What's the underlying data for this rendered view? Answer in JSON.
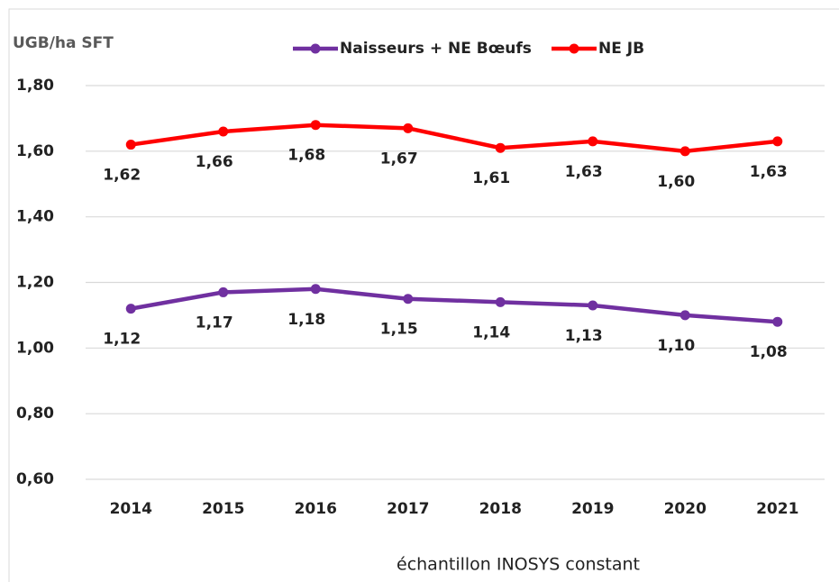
{
  "chart_data": {
    "type": "line",
    "y_axis_label": "UGB/ha SFT",
    "x_axis_label": "échantillon INOSYS constant",
    "categories": [
      "2014",
      "2015",
      "2016",
      "2017",
      "2018",
      "2019",
      "2020",
      "2021"
    ],
    "series": [
      {
        "name": "Naisseurs + NE Bœufs",
        "color": "#7030a0",
        "values": [
          1.12,
          1.17,
          1.18,
          1.15,
          1.14,
          1.13,
          1.1,
          1.08
        ],
        "value_labels": [
          "1,12",
          "1,17",
          "1,18",
          "1,15",
          "1,14",
          "1,13",
          "1,10",
          "1,08"
        ]
      },
      {
        "name": "NE JB",
        "color": "#ff0000",
        "values": [
          1.62,
          1.66,
          1.68,
          1.67,
          1.61,
          1.63,
          1.6,
          1.63
        ],
        "value_labels": [
          "1,62",
          "1,66",
          "1,68",
          "1,67",
          "1,61",
          "1,63",
          "1,60",
          "1,63"
        ]
      }
    ],
    "ylim": [
      0.6,
      1.8
    ],
    "yticks": [
      {
        "value": 0.6,
        "label": "0,60"
      },
      {
        "value": 0.8,
        "label": "0,80"
      },
      {
        "value": 1.0,
        "label": "1,00"
      },
      {
        "value": 1.2,
        "label": "1,20"
      },
      {
        "value": 1.4,
        "label": "1,40"
      },
      {
        "value": 1.6,
        "label": "1,60"
      },
      {
        "value": 1.8,
        "label": "1,80"
      }
    ],
    "grid": true
  }
}
